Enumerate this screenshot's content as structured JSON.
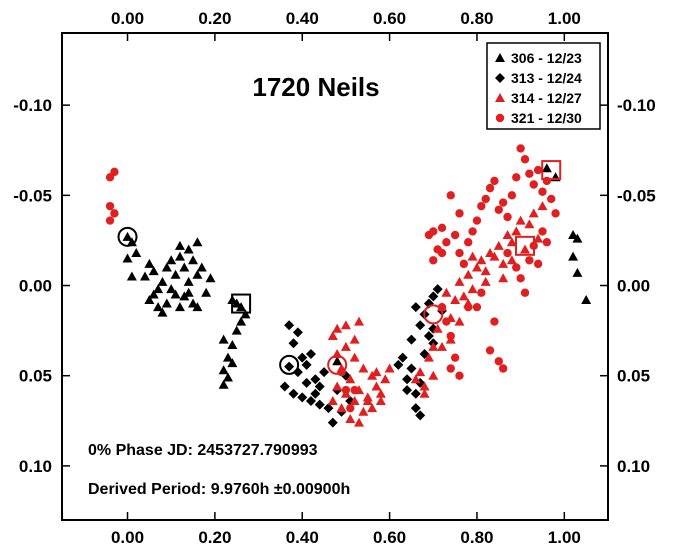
{
  "chart_data": {
    "type": "scatter",
    "title": "1720 Neils",
    "xlim": [
      -0.15,
      1.1
    ],
    "ylim": [
      0.13,
      -0.14
    ],
    "y_inverted": true,
    "x_ticks": [
      "0.00",
      "0.20",
      "0.40",
      "0.60",
      "0.80",
      "1.00"
    ],
    "x_tick_values": [
      0,
      0.2,
      0.4,
      0.6,
      0.8,
      1.0
    ],
    "y_ticks": [
      "-0.10",
      "-0.05",
      "0.00",
      "0.05",
      "0.10"
    ],
    "y_tick_values": [
      -0.1,
      -0.05,
      0.0,
      0.05,
      0.1
    ],
    "annotations": {
      "phase": "0% Phase JD:  2453727.790993",
      "period": "Derived Period: 9.9760h  ±0.00900h"
    },
    "legend_position": "top-right",
    "series": [
      {
        "name": "306 - 12/23",
        "marker": "triangle",
        "color": "#000000",
        "points": [
          [
            0.0,
            -0.027
          ],
          [
            0.01,
            -0.024
          ],
          [
            0.02,
            -0.018
          ],
          [
            0.0,
            -0.015
          ],
          [
            0.01,
            -0.005
          ],
          [
            0.04,
            -0.005
          ],
          [
            0.05,
            -0.012
          ],
          [
            0.06,
            -0.008
          ],
          [
            0.07,
            0.002
          ],
          [
            0.08,
            -0.002
          ],
          [
            0.06,
            0.005
          ],
          [
            0.09,
            -0.01
          ],
          [
            0.1,
            -0.014
          ],
          [
            0.11,
            -0.006
          ],
          [
            0.12,
            -0.016
          ],
          [
            0.13,
            -0.01
          ],
          [
            0.14,
            -0.02
          ],
          [
            0.15,
            -0.014
          ],
          [
            0.16,
            -0.006
          ],
          [
            0.17,
            -0.01
          ],
          [
            0.19,
            -0.004
          ],
          [
            0.14,
            -0.002
          ],
          [
            0.18,
            0.004
          ],
          [
            0.11,
            0.005
          ],
          [
            0.13,
            0.006
          ],
          [
            0.09,
            0.01
          ],
          [
            0.1,
            0.002
          ],
          [
            0.12,
            0.012
          ],
          [
            0.15,
            0.01
          ],
          [
            0.16,
            0.012
          ],
          [
            0.07,
            0.012
          ],
          [
            0.08,
            0.015
          ],
          [
            0.05,
            0.008
          ],
          [
            0.12,
            -0.022
          ],
          [
            0.16,
            -0.024
          ],
          [
            0.14,
            0.004
          ],
          [
            0.22,
            0.03
          ],
          [
            0.23,
            0.04
          ],
          [
            0.22,
            0.047
          ],
          [
            0.24,
            0.033
          ],
          [
            0.23,
            0.051
          ],
          [
            0.24,
            0.043
          ],
          [
            0.25,
            0.025
          ],
          [
            0.26,
            0.02
          ],
          [
            0.27,
            0.016
          ],
          [
            0.25,
            0.01
          ],
          [
            0.26,
            0.012
          ],
          [
            0.24,
            0.008
          ],
          [
            0.22,
            0.055
          ],
          [
            0.48,
            0.042
          ],
          [
            0.96,
            -0.065
          ],
          [
            0.98,
            -0.06
          ],
          [
            1.02,
            -0.028
          ],
          [
            1.03,
            -0.026
          ],
          [
            1.02,
            -0.016
          ],
          [
            1.03,
            -0.007
          ],
          [
            1.05,
            0.008
          ]
        ]
      },
      {
        "name": "313 - 12/24",
        "marker": "diamond",
        "color": "#000000",
        "points": [
          [
            0.37,
            0.022
          ],
          [
            0.38,
            0.032
          ],
          [
            0.39,
            0.026
          ],
          [
            0.4,
            0.04
          ],
          [
            0.41,
            0.044
          ],
          [
            0.42,
            0.038
          ],
          [
            0.43,
            0.052
          ],
          [
            0.44,
            0.056
          ],
          [
            0.39,
            0.048
          ],
          [
            0.4,
            0.062
          ],
          [
            0.42,
            0.064
          ],
          [
            0.41,
            0.054
          ],
          [
            0.43,
            0.06
          ],
          [
            0.37,
            0.045
          ],
          [
            0.36,
            0.056
          ],
          [
            0.38,
            0.06
          ],
          [
            0.46,
            0.068
          ],
          [
            0.47,
            0.076
          ],
          [
            0.48,
            0.058
          ],
          [
            0.44,
            0.066
          ],
          [
            0.5,
            0.05
          ],
          [
            0.49,
            0.07
          ],
          [
            0.45,
            0.048
          ],
          [
            0.51,
            0.064
          ],
          [
            0.62,
            0.044
          ],
          [
            0.63,
            0.04
          ],
          [
            0.64,
            0.052
          ],
          [
            0.65,
            0.046
          ],
          [
            0.66,
            0.06
          ],
          [
            0.67,
            0.054
          ],
          [
            0.68,
            0.038
          ],
          [
            0.69,
            0.028
          ],
          [
            0.7,
            0.024
          ],
          [
            0.68,
            0.016
          ],
          [
            0.69,
            0.01
          ],
          [
            0.7,
            0.006
          ],
          [
            0.67,
            0.022
          ],
          [
            0.66,
            0.012
          ],
          [
            0.65,
            0.03
          ],
          [
            0.71,
            0.002
          ],
          [
            0.72,
            0.014
          ],
          [
            0.66,
            0.068
          ],
          [
            0.67,
            0.072
          ],
          [
            0.64,
            0.058
          ],
          [
            0.7,
            0.032
          ]
        ]
      },
      {
        "name": "314 - 12/27",
        "marker": "triangle",
        "color": "#e02020",
        "points": [
          [
            0.47,
            0.028
          ],
          [
            0.48,
            0.038
          ],
          [
            0.49,
            0.046
          ],
          [
            0.5,
            0.034
          ],
          [
            0.51,
            0.052
          ],
          [
            0.52,
            0.04
          ],
          [
            0.53,
            0.058
          ],
          [
            0.54,
            0.046
          ],
          [
            0.55,
            0.062
          ],
          [
            0.56,
            0.05
          ],
          [
            0.57,
            0.056
          ],
          [
            0.58,
            0.06
          ],
          [
            0.59,
            0.052
          ],
          [
            0.6,
            0.046
          ],
          [
            0.52,
            0.064
          ],
          [
            0.54,
            0.07
          ],
          [
            0.56,
            0.068
          ],
          [
            0.58,
            0.064
          ],
          [
            0.5,
            0.06
          ],
          [
            0.48,
            0.056
          ],
          [
            0.47,
            0.064
          ],
          [
            0.49,
            0.068
          ],
          [
            0.51,
            0.074
          ],
          [
            0.53,
            0.076
          ],
          [
            0.55,
            0.064
          ],
          [
            0.57,
            0.048
          ],
          [
            0.5,
            0.022
          ],
          [
            0.53,
            0.02
          ],
          [
            0.48,
            0.024
          ],
          [
            0.52,
            0.03
          ],
          [
            0.66,
            0.052
          ],
          [
            0.67,
            0.048
          ],
          [
            0.68,
            0.056
          ],
          [
            0.69,
            0.04
          ],
          [
            0.7,
            0.034
          ],
          [
            0.71,
            0.024
          ],
          [
            0.72,
            0.012
          ],
          [
            0.73,
            0.004
          ],
          [
            0.74,
            0.018
          ],
          [
            0.75,
            0.008
          ],
          [
            0.76,
            -0.002
          ],
          [
            0.77,
            0.006
          ],
          [
            0.78,
            -0.006
          ],
          [
            0.79,
            0.002
          ],
          [
            0.8,
            -0.01
          ],
          [
            0.81,
            -0.014
          ],
          [
            0.82,
            -0.008
          ],
          [
            0.83,
            -0.018
          ],
          [
            0.84,
            -0.016
          ],
          [
            0.85,
            -0.022
          ],
          [
            0.86,
            -0.012
          ],
          [
            0.87,
            -0.028
          ],
          [
            0.88,
            -0.024
          ],
          [
            0.89,
            -0.03
          ],
          [
            0.9,
            -0.036
          ],
          [
            0.91,
            -0.02
          ],
          [
            0.92,
            -0.034
          ],
          [
            0.93,
            -0.04
          ],
          [
            0.94,
            -0.026
          ],
          [
            0.95,
            -0.044
          ],
          [
            0.74,
            0.03
          ],
          [
            0.76,
            0.02
          ],
          [
            0.78,
            0.01
          ],
          [
            0.72,
            0.034
          ],
          [
            0.79,
            -0.016
          ],
          [
            0.82,
            -0.002
          ],
          [
            0.7,
            0.05
          ],
          [
            0.68,
            0.06
          ],
          [
            0.86,
            -0.004
          ],
          [
            0.88,
            -0.014
          ]
        ]
      },
      {
        "name": "321 - 12/30",
        "marker": "circle",
        "color": "#e02020",
        "points": [
          [
            -0.04,
            -0.06
          ],
          [
            -0.03,
            -0.063
          ],
          [
            -0.04,
            -0.044
          ],
          [
            -0.03,
            -0.04
          ],
          [
            -0.04,
            -0.036
          ],
          [
            0.49,
            0.048
          ],
          [
            0.5,
            0.058
          ],
          [
            0.51,
            0.068
          ],
          [
            0.52,
            0.058
          ],
          [
            0.69,
            -0.028
          ],
          [
            0.7,
            -0.03
          ],
          [
            0.7,
            -0.014
          ],
          [
            0.71,
            -0.02
          ],
          [
            0.72,
            -0.018
          ],
          [
            0.73,
            -0.024
          ],
          [
            0.72,
            0.012
          ],
          [
            0.73,
            0.02
          ],
          [
            0.74,
            0.028
          ],
          [
            0.75,
            0.04
          ],
          [
            0.76,
            0.05
          ],
          [
            0.74,
            0.046
          ],
          [
            0.72,
            -0.032
          ],
          [
            0.75,
            -0.028
          ],
          [
            0.76,
            -0.018
          ],
          [
            0.77,
            -0.012
          ],
          [
            0.78,
            -0.024
          ],
          [
            0.79,
            -0.03
          ],
          [
            0.8,
            -0.036
          ],
          [
            0.81,
            -0.044
          ],
          [
            0.82,
            -0.048
          ],
          [
            0.83,
            -0.054
          ],
          [
            0.84,
            -0.058
          ],
          [
            0.85,
            -0.042
          ],
          [
            0.86,
            -0.046
          ],
          [
            0.87,
            -0.038
          ],
          [
            0.88,
            -0.05
          ],
          [
            0.89,
            -0.06
          ],
          [
            0.9,
            -0.076
          ],
          [
            0.91,
            -0.07
          ],
          [
            0.92,
            -0.062
          ],
          [
            0.93,
            -0.056
          ],
          [
            0.94,
            -0.064
          ],
          [
            0.95,
            -0.052
          ],
          [
            0.96,
            -0.058
          ],
          [
            0.97,
            -0.048
          ],
          [
            0.98,
            -0.04
          ],
          [
            0.87,
            -0.018
          ],
          [
            0.89,
            -0.01
          ],
          [
            0.9,
            -0.004
          ],
          [
            0.91,
            0.004
          ],
          [
            0.92,
            -0.014
          ],
          [
            0.93,
            -0.022
          ],
          [
            0.94,
            -0.012
          ],
          [
            0.95,
            -0.03
          ],
          [
            0.96,
            -0.024
          ],
          [
            0.84,
            0.02
          ],
          [
            0.85,
            0.042
          ],
          [
            0.86,
            0.046
          ],
          [
            0.83,
            0.036
          ],
          [
            0.8,
            0.012
          ],
          [
            0.81,
            0.004
          ],
          [
            0.78,
            0.012
          ],
          [
            0.76,
            -0.04
          ],
          [
            0.74,
            -0.05
          ]
        ]
      }
    ],
    "highlights": [
      {
        "shape": "circle",
        "color": "#000000",
        "x": 0.0,
        "y": -0.027
      },
      {
        "shape": "square",
        "color": "#000000",
        "x": 0.26,
        "y": 0.01
      },
      {
        "shape": "circle",
        "color": "#000000",
        "x": 0.37,
        "y": 0.044
      },
      {
        "shape": "circle",
        "color": "#e02020",
        "x": 0.48,
        "y": 0.044
      },
      {
        "shape": "circle",
        "color": "#e02020",
        "x": 0.7,
        "y": 0.016
      },
      {
        "shape": "square",
        "color": "#e02020",
        "x": 0.91,
        "y": -0.022
      },
      {
        "shape": "square",
        "color": "#e02020",
        "x": 0.97,
        "y": -0.064
      }
    ]
  }
}
